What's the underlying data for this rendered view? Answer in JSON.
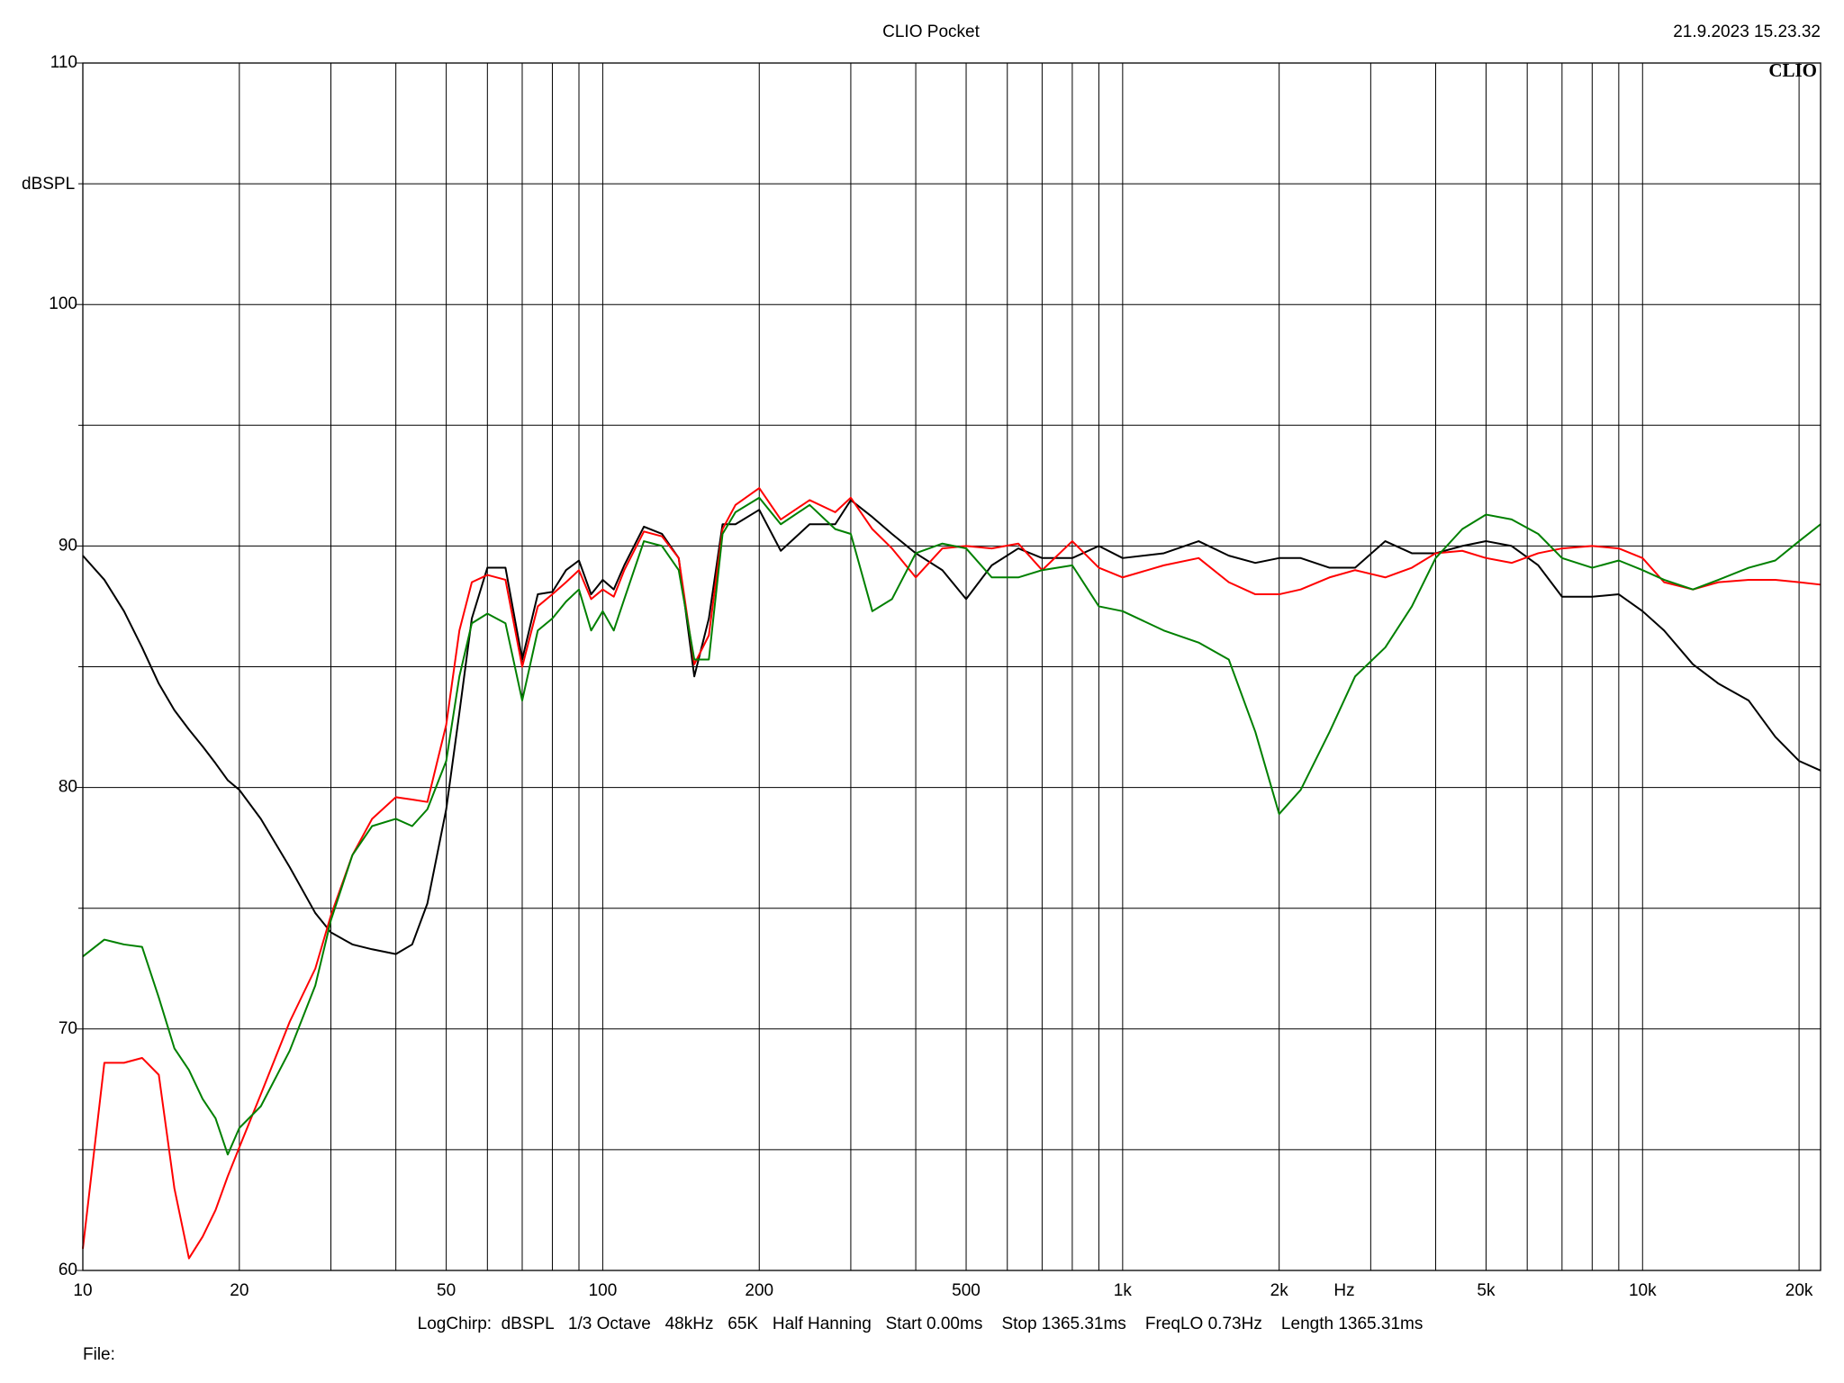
{
  "chart_data": {
    "type": "line",
    "title": "CLIO Pocket",
    "date": "21.9.2023 15.23.32",
    "logo": "CLIO",
    "y_label": "dBSPL",
    "x_label": "Hz",
    "settings": "LogChirp:  dBSPL   1/3 Octave   48kHz   65K   Half Hanning   Start 0.00ms    Stop 1365.31ms    FreqLO 0.73Hz    Length 1365.31ms",
    "file_label": "File:",
    "xscale": "log",
    "xlim": [
      10,
      22000
    ],
    "ylim": [
      60,
      110
    ],
    "xticks": [
      10,
      20,
      50,
      100,
      200,
      500,
      {
        "value": 1000,
        "label": "1k"
      },
      {
        "value": 2000,
        "label": "2k"
      },
      {
        "value": 5000,
        "label": "5k"
      },
      {
        "value": 10000,
        "label": "10k"
      },
      {
        "value": 20000,
        "label": "20k"
      }
    ],
    "x_minor_grid": [
      30,
      40,
      60,
      70,
      80,
      90,
      300,
      400,
      600,
      700,
      800,
      900,
      3000,
      4000,
      6000,
      7000,
      8000,
      9000
    ],
    "yticks": [
      60,
      70,
      80,
      90,
      100,
      110
    ],
    "y_minor_grid": [
      65,
      75,
      85,
      95,
      105
    ],
    "grid": true,
    "x": [
      10,
      11,
      12,
      13,
      14,
      15,
      16,
      17,
      18,
      19,
      20,
      22,
      25,
      28,
      30,
      33,
      36,
      40,
      43,
      46,
      50,
      53,
      56,
      60,
      65,
      70,
      75,
      80,
      85,
      90,
      95,
      100,
      105,
      110,
      120,
      130,
      140,
      150,
      160,
      170,
      180,
      200,
      220,
      250,
      280,
      300,
      330,
      360,
      400,
      450,
      500,
      560,
      630,
      700,
      800,
      900,
      1000,
      1200,
      1400,
      1600,
      1800,
      2000,
      2200,
      2500,
      2800,
      3200,
      3600,
      4000,
      4500,
      5000,
      5600,
      6300,
      7000,
      8000,
      9000,
      10000,
      11000,
      12500,
      14000,
      16000,
      18000,
      20000,
      22000
    ],
    "series": [
      {
        "color": "#000000",
        "values": [
          89.6,
          88.6,
          87.3,
          85.8,
          84.3,
          83.2,
          82.4,
          81.7,
          81.0,
          80.3,
          79.9,
          78.7,
          76.7,
          74.8,
          74.0,
          73.5,
          73.3,
          73.1,
          73.5,
          75.2,
          79.1,
          83.1,
          87.0,
          89.1,
          89.1,
          85.3,
          88.0,
          88.1,
          89.0,
          89.4,
          88.0,
          88.6,
          88.2,
          89.2,
          90.8,
          90.5,
          89.5,
          84.6,
          87.0,
          90.9,
          90.9,
          91.5,
          89.8,
          90.9,
          90.9,
          91.9,
          91.2,
          90.5,
          89.7,
          89.0,
          87.8,
          89.2,
          89.9,
          89.5,
          89.5,
          90.0,
          89.5,
          89.7,
          90.2,
          89.6,
          89.3,
          89.5,
          89.5,
          89.1,
          89.1,
          90.2,
          89.7,
          89.7,
          90.0,
          90.2,
          90.0,
          89.2,
          87.9,
          87.9,
          88.0,
          87.3,
          86.5,
          85.1,
          84.3,
          83.6,
          82.1,
          81.1,
          80.7
        ]
      },
      {
        "color": "#ff0000",
        "values": [
          60.9,
          68.6,
          68.6,
          68.8,
          68.1,
          63.4,
          60.5,
          61.4,
          62.5,
          63.9,
          65.1,
          67.3,
          70.3,
          72.5,
          74.7,
          77.2,
          78.7,
          79.6,
          79.5,
          79.4,
          82.6,
          86.5,
          88.5,
          88.8,
          88.6,
          85.0,
          87.5,
          88.0,
          88.5,
          89.0,
          87.8,
          88.2,
          87.9,
          89.0,
          90.6,
          90.4,
          89.5,
          85.1,
          86.3,
          90.7,
          91.7,
          92.4,
          91.1,
          91.9,
          91.4,
          92.0,
          90.7,
          89.9,
          88.7,
          89.9,
          90.0,
          89.9,
          90.1,
          89.0,
          90.2,
          89.1,
          88.7,
          89.2,
          89.5,
          88.5,
          88.0,
          88.0,
          88.2,
          88.7,
          89.0,
          88.7,
          89.1,
          89.7,
          89.8,
          89.5,
          89.3,
          89.7,
          89.9,
          90.0,
          89.9,
          89.5,
          88.5,
          88.2,
          88.5,
          88.6,
          88.6,
          88.5,
          88.4
        ]
      },
      {
        "color": "#008000",
        "values": [
          73.0,
          73.7,
          73.5,
          73.4,
          71.3,
          69.2,
          68.3,
          67.1,
          66.3,
          64.8,
          65.9,
          66.8,
          69.1,
          71.8,
          74.5,
          77.2,
          78.4,
          78.7,
          78.4,
          79.1,
          81.1,
          84.6,
          86.8,
          87.2,
          86.8,
          83.6,
          86.5,
          87.0,
          87.7,
          88.2,
          86.5,
          87.3,
          86.5,
          87.8,
          90.2,
          90.0,
          89.0,
          85.3,
          85.3,
          90.5,
          91.4,
          92.0,
          90.9,
          91.7,
          90.7,
          90.5,
          87.3,
          87.8,
          89.7,
          90.1,
          89.9,
          88.7,
          88.7,
          89.0,
          89.2,
          87.5,
          87.3,
          86.5,
          86.0,
          85.3,
          82.3,
          78.9,
          79.9,
          82.3,
          84.6,
          85.8,
          87.5,
          89.5,
          90.7,
          91.3,
          91.1,
          90.5,
          89.5,
          89.1,
          89.4,
          89.0,
          88.6,
          88.2,
          88.6,
          89.1,
          89.4,
          90.2,
          90.9
        ]
      }
    ]
  }
}
